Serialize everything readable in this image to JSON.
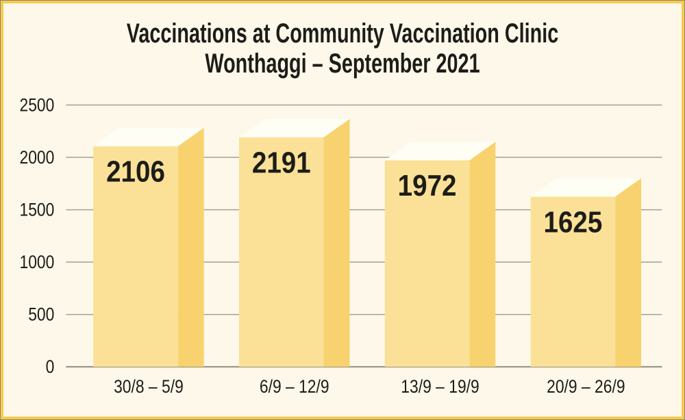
{
  "chart_data": {
    "type": "bar",
    "title": "Vaccinations at Community Vaccination Clinic Wonthaggi – September 2021",
    "title_lines": [
      "Vaccinations at Community Vaccination Clinic",
      "Wonthaggi – September 2021"
    ],
    "categories": [
      "30/8 – 5/9",
      "6/9 – 12/9",
      "13/9 – 19/9",
      "20/9 – 26/9"
    ],
    "values": [
      2106,
      2191,
      1972,
      1625
    ],
    "data_labels": [
      "2106",
      "2191",
      "1972",
      "1625"
    ],
    "xlabel": "",
    "ylabel": "",
    "ylim": [
      0,
      2500
    ],
    "y_ticks": [
      0,
      500,
      1000,
      1500,
      2000,
      2500
    ],
    "grid": true,
    "legend_position": "none",
    "bar_style": "3d-extruded",
    "colors": {
      "background": "#FDF8E9",
      "frame_border": "#F7CB4E",
      "frame_outline": "#8A8672",
      "bar_front": "#FAE197",
      "bar_side": "#F7D26E",
      "bar_top": "#FFFEF5",
      "grid_line": "#A3A196",
      "axis_line": "#8F8D80",
      "text": "#1D1C18"
    }
  }
}
